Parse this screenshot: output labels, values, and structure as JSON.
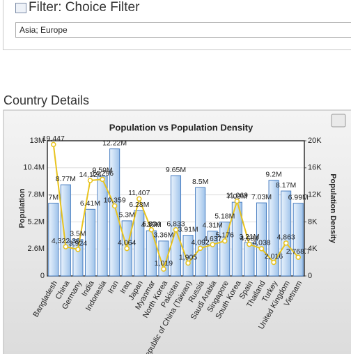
{
  "filter": {
    "title": "Filter: Choice Filter",
    "value": "Asia; Europe"
  },
  "section_title": "Country Details",
  "chart_data": {
    "type": "bar",
    "title": "Population vs Population Density",
    "categories": [
      "Bangladesh",
      "China",
      "Germany",
      "India",
      "Indonesia",
      "Iran",
      "Iraq",
      "Japan",
      "Myanmar",
      "North Korea",
      "Pakistan",
      "Republic of China (Taiwan)",
      "Russia",
      "Saudi Arabia",
      "Singapore",
      "South Korea",
      "Spain",
      "Thailand",
      "Turkey",
      "United Kingdom",
      "Vietnam"
    ],
    "series": [
      {
        "name": "Population",
        "type": "bar",
        "color": "#4a7fc1",
        "values": [
          7000000,
          8770000,
          3500000,
          6410000,
          9590000,
          12220000,
          5300000,
          6280000,
          4350000,
          3360000,
          9650000,
          3910000,
          8500000,
          4310000,
          5180000,
          7090000,
          3210000,
          7030000,
          9200000,
          8170000,
          6990000
        ],
        "value_labels": [
          "7M",
          "8.77M",
          "3.5M",
          "6.41M",
          "9.59M",
          "12.22M",
          "5.3M",
          "6.28M",
          "4.35M",
          "3.36M",
          "9.65M",
          "3.91M",
          "8.5M",
          "4.31M",
          "5.18M",
          "7.09M",
          "3.21M",
          "7.03M",
          "9.2M",
          "8.17M",
          "6.99M"
        ]
      },
      {
        "name": "Population Density",
        "type": "line",
        "axis": "y2",
        "color": "#e8c31e",
        "values": [
          19447,
          4322.36,
          3924,
          14124,
          14296,
          10359,
          4064,
          11407,
          6834,
          1019,
          6833,
          1905,
          4092,
          4637,
          5176,
          11069,
          4684,
          4038,
          2016,
          4863,
          2768.7
        ],
        "value_labels": [
          "19,447",
          "4,322.36",
          "3,924",
          "14,124",
          "14,296",
          "10,359",
          "4,064",
          "11,407",
          "6,834",
          "1,019",
          "6,833",
          "1,905",
          "4,092",
          "4,637",
          "5,176",
          "11,069",
          "4,684",
          "4,038",
          "2,016",
          "4,863",
          "2,768.7"
        ]
      }
    ],
    "ylim": [
      0,
      13000000
    ],
    "yticks": [
      0,
      {
        "value": 2600000,
        "label": "2.6M"
      },
      {
        "value": 5200000,
        "label": "5.2M"
      },
      {
        "value": 7800000,
        "label": "7.8M"
      },
      {
        "value": 10400000,
        "label": "10.4M"
      },
      {
        "value": 13000000,
        "label": "13M"
      }
    ],
    "y2lim": [
      0,
      20000
    ],
    "y2ticks": [
      0,
      {
        "value": 4000,
        "label": "4K"
      },
      {
        "value": 8000,
        "label": "8K"
      },
      {
        "value": 12000,
        "label": "12K"
      },
      {
        "value": 16000,
        "label": "16K"
      },
      {
        "value": 20000,
        "label": "20K"
      }
    ],
    "grid": true
  }
}
